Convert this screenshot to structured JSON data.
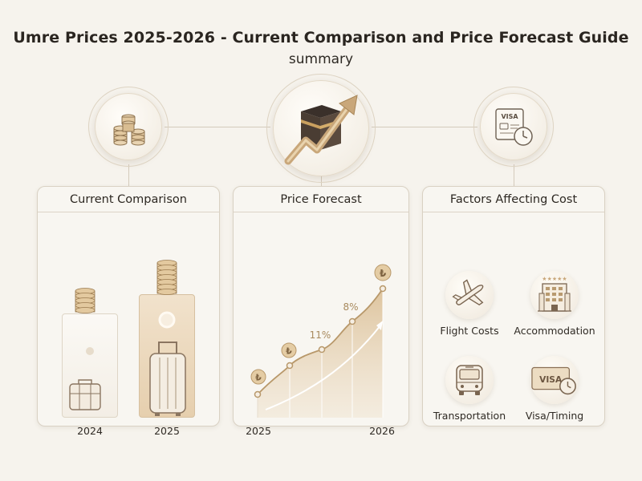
{
  "header": {
    "title": "Umre Prices 2025-2026 - Current Comparison and Price Forecast Guide",
    "subtitle": "summary"
  },
  "top_icons": [
    {
      "icon": "coin-stacks-icon"
    },
    {
      "icon": "kaaba-rising-arrow-icon"
    },
    {
      "icon": "visa-clock-icon",
      "text": "VISA"
    }
  ],
  "panels": {
    "comparison": {
      "title": "Current Comparison",
      "years": [
        "2024",
        "2025"
      ]
    },
    "forecast": {
      "title": "Price Forecast",
      "x_labels": [
        "2025",
        "2026"
      ],
      "pct_labels": [
        "11%",
        "8%"
      ],
      "currency_symbol": "₺"
    },
    "factors": {
      "title": "Factors Affecting Cost",
      "items": [
        {
          "label": "Flight Costs",
          "icon": "airplane-icon"
        },
        {
          "label": "Accommodation",
          "icon": "hotel-icon"
        },
        {
          "label": "Transportation",
          "icon": "bus-icon"
        },
        {
          "label": "Visa/Timing",
          "icon": "visa-clock-icon",
          "badge": "VISA"
        }
      ]
    }
  },
  "colors": {
    "background": "#f6f3ed",
    "accent_gold": "#c9a77a",
    "gold_dark": "#9a7a4f",
    "panel_border": "#d9d1c3"
  }
}
